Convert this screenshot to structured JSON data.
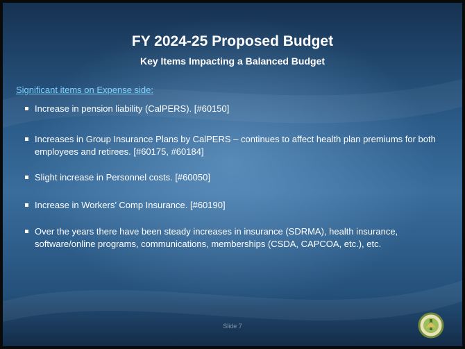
{
  "slide": {
    "title": "FY 2024-25 Proposed Budget",
    "subtitle": "Key Items Impacting a Balanced Budget",
    "section_heading": "Significant items on Expense side:",
    "bullets": [
      "Increase in pension liability (CalPERS). [#60150]",
      "Increases in Group Insurance Plans by CalPERS – continues to affect health plan premiums for both employees and retirees. [#60175, #60184]",
      "Slight increase in Personnel costs. [#60050]",
      "Increase in Workers’ Comp Insurance.  [#60190]",
      "Over the years there have been steady increases in insurance (SDRMA), health insurance, software/online programs, communications, memberships (CSDA, CAPCOA, etc.), etc."
    ],
    "footer": "Slide 7"
  }
}
